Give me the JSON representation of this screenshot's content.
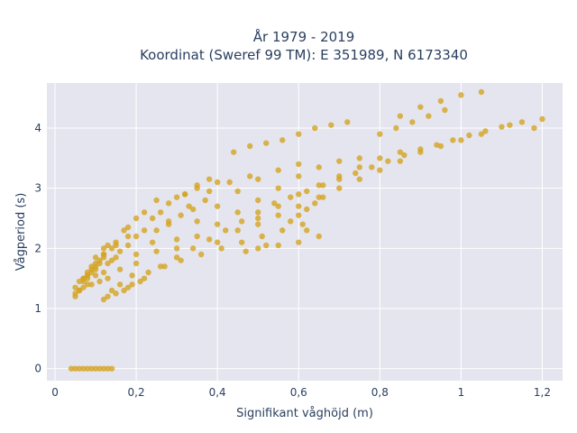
{
  "chart_data": {
    "type": "scatter",
    "title_line1": "År 1979 - 2019",
    "title_line2": "Koordinat (Sweref 99 TM): E 351989, N 6173340",
    "xlabel": "Signifikant våghöjd (m)",
    "ylabel": "Vågperiod (s)",
    "xlim": [
      -0.02,
      1.25
    ],
    "ylim": [
      -0.2,
      4.75
    ],
    "x_ticks": [
      0,
      0.2,
      0.4,
      0.6,
      0.8,
      1,
      1.2
    ],
    "x_tick_labels": [
      "0",
      "0,2",
      "0,4",
      "0,6",
      "0,8",
      "1",
      "1,2"
    ],
    "y_ticks": [
      0,
      1,
      2,
      3,
      4
    ],
    "y_tick_labels": [
      "0",
      "1",
      "2",
      "3",
      "4"
    ],
    "grid": true,
    "marker_color": "#d4a420",
    "plot_bg": "#e5e5ef",
    "series": [
      {
        "x": [
          0.05,
          0.06,
          0.07,
          0.08,
          0.08,
          0.1,
          0.12,
          0.14,
          0.05,
          0.06,
          0.08,
          0.09,
          0.1,
          0.12,
          0.05,
          0.07,
          0.09,
          0.11,
          0.13,
          0.06,
          0.08,
          0.1,
          0.12,
          0.15,
          0.18,
          0.07,
          0.09,
          0.11,
          0.14,
          0.17,
          0.2,
          0.08,
          0.1,
          0.12,
          0.15,
          0.18,
          0.22,
          0.25,
          0.1,
          0.13,
          0.16,
          0.2,
          0.24,
          0.28,
          0.32,
          0.12,
          0.15,
          0.18,
          0.22,
          0.26,
          0.3,
          0.35,
          0.4,
          0.16,
          0.2,
          0.24,
          0.28,
          0.33,
          0.38,
          0.43,
          0.48,
          0.2,
          0.25,
          0.3,
          0.35,
          0.4,
          0.45,
          0.5,
          0.55,
          0.6,
          0.3,
          0.35,
          0.4,
          0.45,
          0.5,
          0.55,
          0.6,
          0.65,
          0.7,
          0.75,
          0.4,
          0.45,
          0.5,
          0.55,
          0.6,
          0.65,
          0.7,
          0.75,
          0.8,
          0.85,
          0.5,
          0.55,
          0.6,
          0.65,
          0.7,
          0.75,
          0.8,
          0.85,
          0.9,
          0.95,
          1.0,
          1.05,
          0.12,
          0.18,
          0.22,
          0.26,
          0.3,
          0.34,
          0.38,
          0.42,
          0.46,
          0.5,
          0.54,
          0.58,
          0.62,
          0.66,
          0.7,
          0.74,
          0.78,
          0.82,
          0.86,
          0.9,
          0.94,
          0.98,
          1.02,
          1.06,
          1.1,
          1.15,
          1.2,
          0.55,
          0.6,
          0.65,
          0.62,
          0.58,
          0.6,
          0.62,
          0.64,
          0.66,
          0.47,
          0.5,
          0.52,
          0.32,
          0.35,
          0.38,
          0.8,
          0.84,
          0.88,
          0.92,
          0.96,
          0.85,
          0.9,
          0.95,
          1.0,
          1.05,
          1.12,
          1.18,
          0.44,
          0.48,
          0.52,
          0.56,
          0.6,
          0.64,
          0.68,
          0.72,
          0.14,
          0.16,
          0.19,
          0.23,
          0.27,
          0.31,
          0.36,
          0.41,
          0.46,
          0.51,
          0.56,
          0.61,
          0.25,
          0.28,
          0.31,
          0.34,
          0.37,
          0.13,
          0.15,
          0.17,
          0.19,
          0.21,
          0.07,
          0.09,
          0.11,
          0.13,
          0.04,
          0.05,
          0.06,
          0.07,
          0.08,
          0.09,
          0.1,
          0.11,
          0.12,
          0.13,
          0.14
        ],
        "y": [
          1.2,
          1.3,
          1.5,
          1.4,
          1.6,
          1.7,
          1.9,
          1.8,
          1.25,
          1.45,
          1.55,
          1.7,
          1.85,
          2.0,
          1.35,
          1.5,
          1.65,
          1.75,
          2.05,
          1.3,
          1.55,
          1.75,
          1.9,
          2.1,
          2.2,
          1.45,
          1.6,
          1.8,
          2.0,
          2.3,
          2.5,
          1.5,
          1.65,
          1.85,
          2.05,
          2.35,
          2.6,
          2.8,
          1.55,
          1.75,
          1.95,
          2.2,
          2.5,
          2.75,
          2.9,
          1.6,
          1.85,
          2.05,
          2.3,
          2.6,
          2.85,
          3.0,
          3.1,
          1.65,
          1.9,
          2.1,
          2.4,
          2.7,
          2.95,
          3.1,
          3.2,
          1.75,
          1.95,
          2.15,
          2.45,
          2.7,
          2.95,
          3.15,
          3.3,
          3.4,
          2.0,
          2.2,
          2.4,
          2.6,
          2.8,
          3.0,
          3.2,
          3.35,
          3.45,
          3.5,
          2.1,
          2.3,
          2.5,
          2.7,
          2.9,
          3.05,
          3.2,
          3.35,
          3.5,
          3.6,
          2.4,
          2.55,
          2.7,
          2.85,
          3.0,
          3.15,
          3.3,
          3.45,
          3.6,
          3.7,
          3.8,
          3.9,
          1.15,
          1.35,
          1.5,
          1.7,
          1.85,
          2.0,
          2.15,
          2.3,
          2.45,
          2.6,
          2.75,
          2.85,
          2.95,
          3.05,
          3.15,
          3.25,
          3.35,
          3.45,
          3.55,
          3.65,
          3.72,
          3.8,
          3.88,
          3.95,
          4.02,
          4.1,
          4.15,
          2.05,
          2.1,
          2.2,
          2.3,
          2.45,
          2.55,
          2.65,
          2.75,
          2.85,
          1.95,
          2.0,
          2.05,
          2.9,
          3.05,
          3.15,
          3.9,
          4.0,
          4.1,
          4.2,
          4.3,
          4.2,
          4.35,
          4.45,
          4.55,
          4.6,
          4.05,
          4.0,
          3.6,
          3.7,
          3.75,
          3.8,
          3.9,
          4.0,
          4.05,
          4.1,
          1.3,
          1.4,
          1.55,
          1.6,
          1.7,
          1.8,
          1.9,
          2.0,
          2.1,
          2.2,
          2.3,
          2.4,
          2.3,
          2.45,
          2.55,
          2.65,
          2.8,
          1.2,
          1.25,
          1.3,
          1.4,
          1.45,
          1.35,
          1.4,
          1.45,
          1.5,
          0.0,
          0.0,
          0.0,
          0.0,
          0.0,
          0.0,
          0.0,
          0.0,
          0.0,
          0.0,
          0.0
        ]
      }
    ]
  }
}
